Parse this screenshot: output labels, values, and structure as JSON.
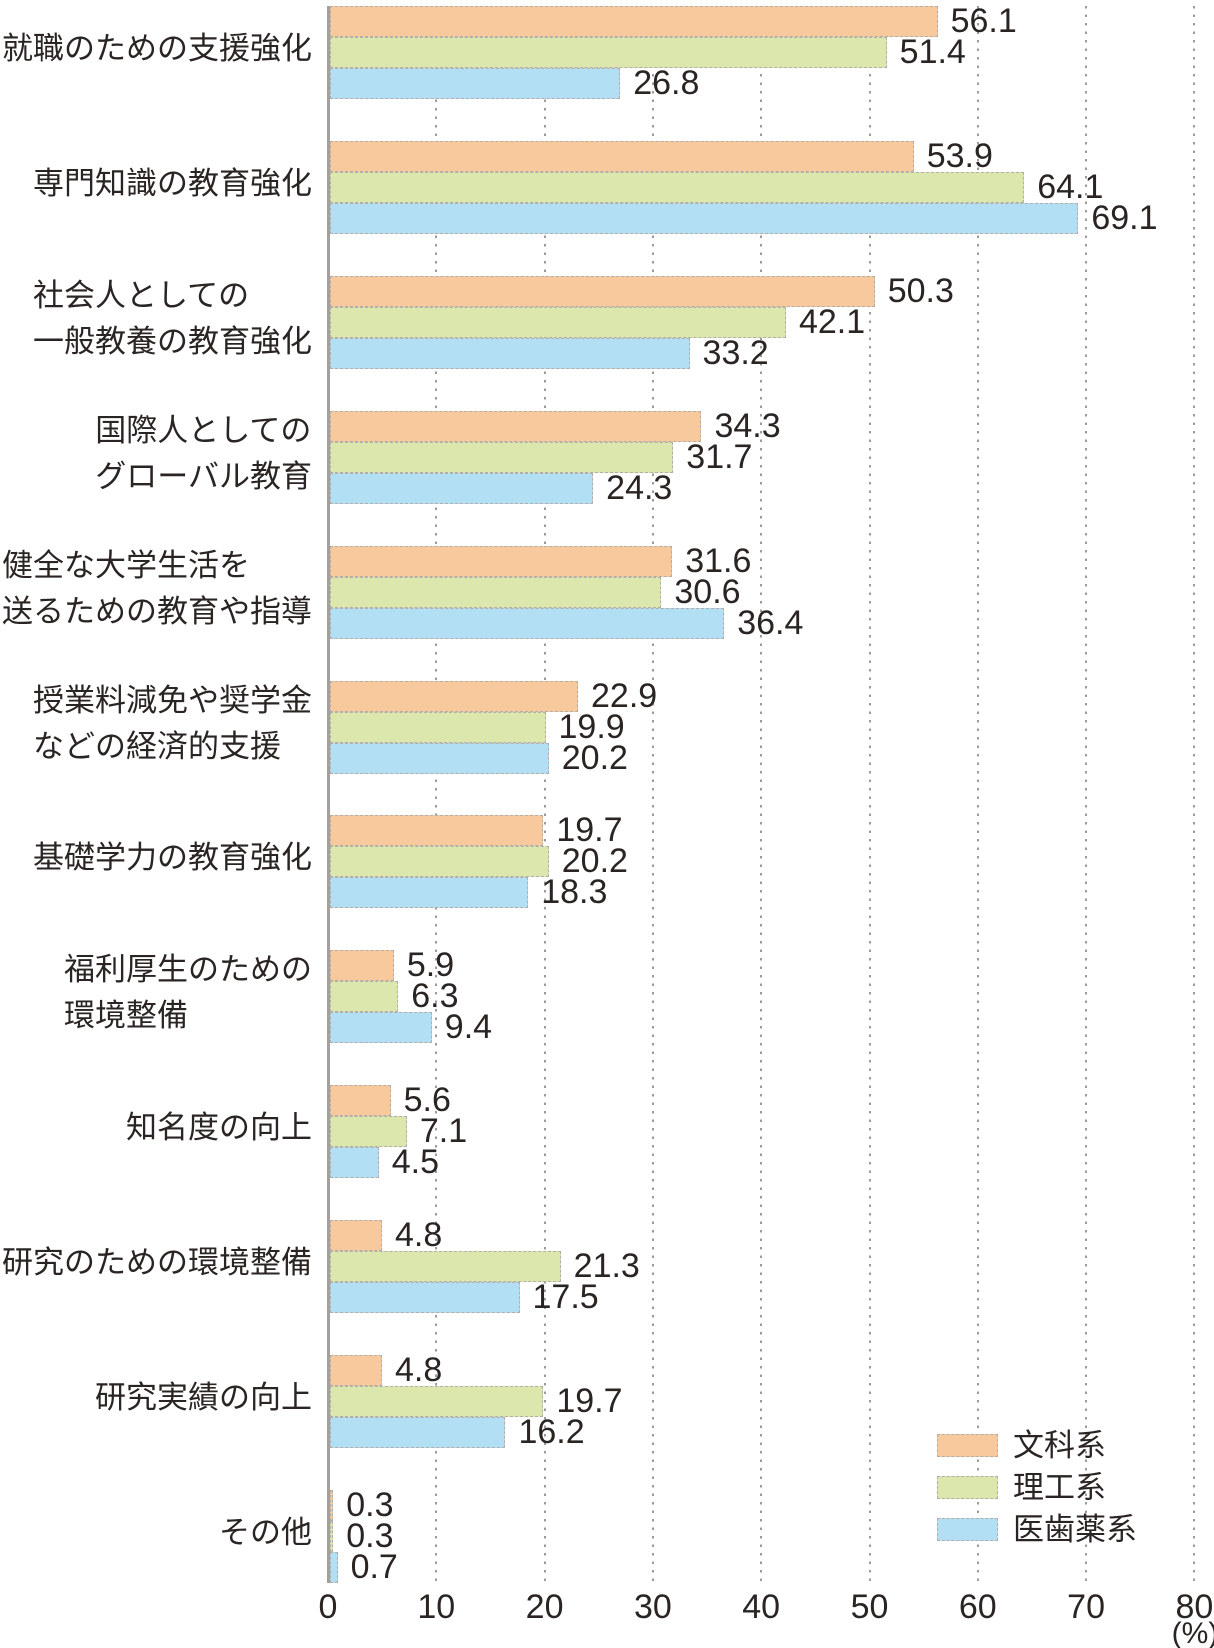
{
  "chart_data": {
    "type": "bar",
    "orientation": "horizontal",
    "title": "",
    "xlabel": "",
    "ylabel": "",
    "unit_label": "(%)",
    "xlim": [
      0,
      80
    ],
    "xticks": [
      0,
      10,
      20,
      30,
      40,
      50,
      60,
      70,
      80
    ],
    "grid": "dotted-vertical",
    "legend_position": "bottom-right",
    "categories": [
      {
        "lines": [
          "就職のための支援強化"
        ]
      },
      {
        "lines": [
          "専門知識の教育強化"
        ]
      },
      {
        "lines": [
          "社会人としての",
          "一般教養の教育強化"
        ]
      },
      {
        "lines": [
          "国際人としての",
          "グローバル教育"
        ]
      },
      {
        "lines": [
          "健全な大学生活を",
          "送るための教育や指導"
        ]
      },
      {
        "lines": [
          "授業料減免や奨学金",
          "などの経済的支援"
        ]
      },
      {
        "lines": [
          "基礎学力の教育強化"
        ]
      },
      {
        "lines": [
          "福利厚生のための",
          "環境整備"
        ]
      },
      {
        "lines": [
          "知名度の向上"
        ]
      },
      {
        "lines": [
          "研究のための環境整備"
        ]
      },
      {
        "lines": [
          "研究実績の向上"
        ]
      },
      {
        "lines": [
          "その他"
        ]
      }
    ],
    "series": [
      {
        "name": "文科系",
        "color": "#f8c99c",
        "values": [
          56.1,
          53.9,
          50.3,
          34.3,
          31.6,
          22.9,
          19.7,
          5.9,
          5.6,
          4.8,
          4.8,
          0.3
        ]
      },
      {
        "name": "理工系",
        "color": "#dbe7ac",
        "values": [
          51.4,
          64.1,
          42.1,
          31.7,
          30.6,
          19.9,
          20.2,
          6.3,
          7.1,
          21.3,
          19.7,
          0.3
        ]
      },
      {
        "name": "医歯薬系",
        "color": "#b3dff4",
        "values": [
          26.8,
          69.1,
          33.2,
          24.3,
          36.4,
          20.2,
          18.3,
          9.4,
          4.5,
          17.5,
          16.2,
          0.7
        ]
      }
    ],
    "style_colors": {
      "grid_color": "#9b9b9b",
      "axis_color": "#a3a09d",
      "bar_border_color": "#b3aeaa",
      "text_color": "#2a2422"
    }
  }
}
